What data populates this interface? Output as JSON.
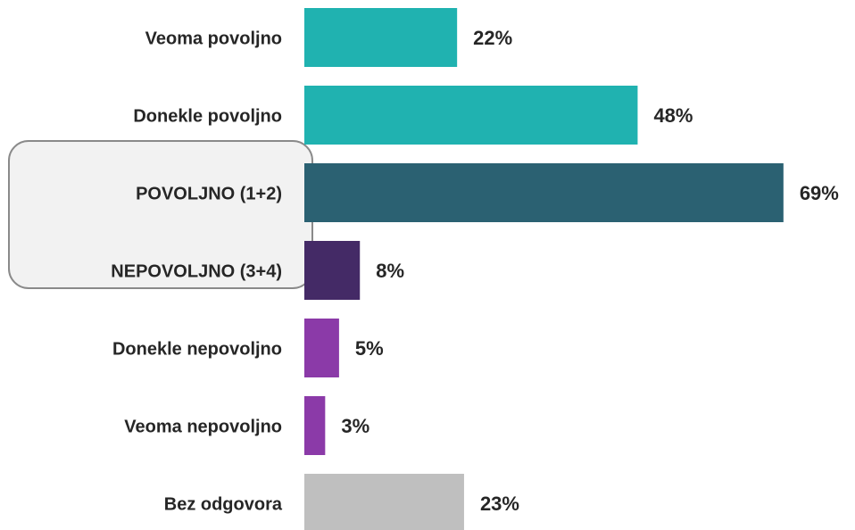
{
  "chart_data": {
    "type": "barh",
    "categories": [
      "Veoma povoljno",
      "Donekle povoljno",
      "POVOLJNO (1+2)",
      "NEPOVOLJNO (3+4)",
      "Donekle nepovoljno",
      "Veoma nepovoljno",
      "Bez odgovora"
    ],
    "values": [
      22,
      48,
      69,
      8,
      5,
      3,
      23
    ],
    "value_labels": [
      "22%",
      "48%",
      "69%",
      "8%",
      "5%",
      "3%",
      "23%"
    ],
    "colors": [
      "#20b2b0",
      "#20b2b0",
      "#2b6172",
      "#442a66",
      "#8b3aa8",
      "#8b3aa8",
      "#bfbfbf"
    ]
  }
}
